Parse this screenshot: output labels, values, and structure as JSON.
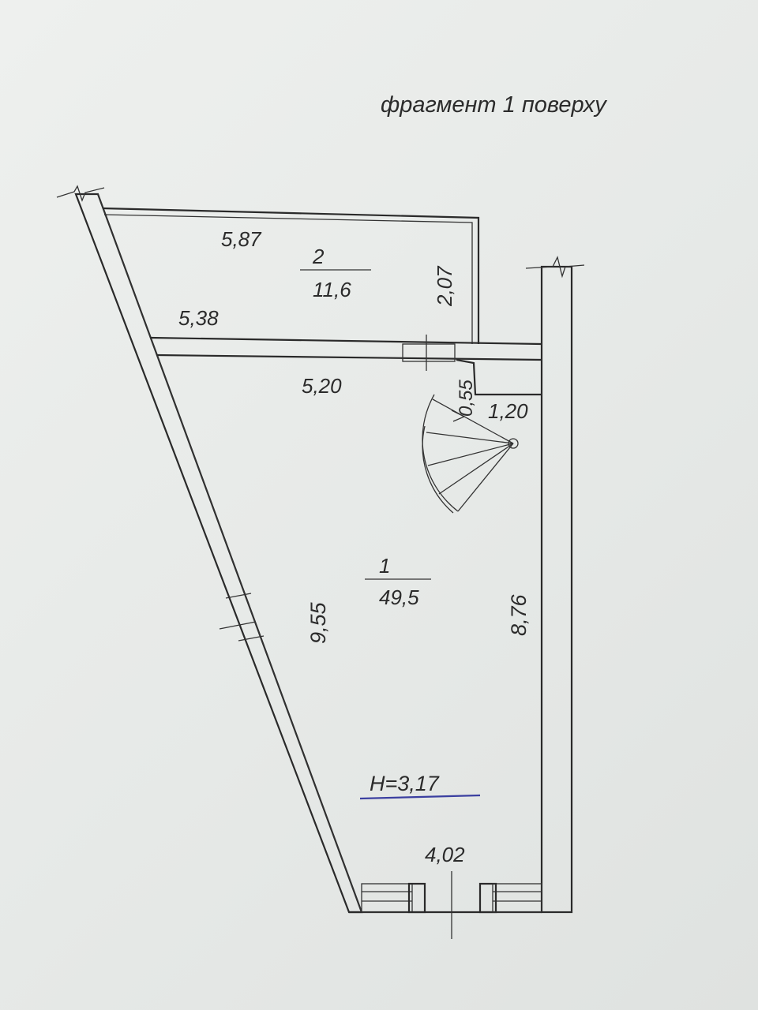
{
  "fragment_title": "фрагмент 1 поверху",
  "rooms": [
    {
      "number": "1",
      "area": "49,5"
    },
    {
      "number": "2",
      "area": "11,6"
    }
  ],
  "dimensions": {
    "room2_top": "5,87",
    "room2_bottom": "5,38",
    "room2_depth": "2,07",
    "room1_top": "5,20",
    "step_depth": "0,55",
    "step_width": "1,20",
    "left_wall": "9,55",
    "right_wall": "8,76",
    "bottom_width": "4,02"
  },
  "ceiling_height": "Н=3,17",
  "colors": {
    "line": "#2a2a2a",
    "underline": "#3b3fa0",
    "paper": "#eceeec"
  }
}
